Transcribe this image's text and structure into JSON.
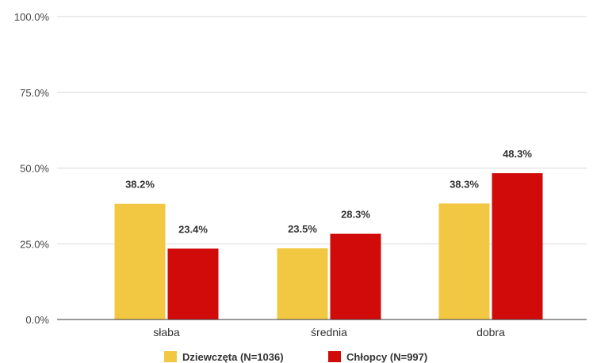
{
  "chart_data": {
    "type": "bar",
    "categories": [
      "słaba",
      "średnia",
      "dobra"
    ],
    "series": [
      {
        "name": "Dziewczęta (N=1036)",
        "color": "#F2C843",
        "values": [
          38.2,
          23.5,
          38.3
        ],
        "labels": [
          "38.2%",
          "23.5%",
          "38.3%"
        ]
      },
      {
        "name": "Chłopcy (N=997)",
        "color": "#D10A0A",
        "values": [
          23.4,
          28.3,
          48.3
        ],
        "labels": [
          "23.4%",
          "28.3%",
          "48.3%"
        ]
      }
    ],
    "ylim": [
      0,
      100
    ],
    "yticks": [
      {
        "value": 0,
        "label": "0.0%"
      },
      {
        "value": 25,
        "label": "25.0%"
      },
      {
        "value": 50,
        "label": "50.0%"
      },
      {
        "value": 75,
        "label": "75.0%"
      },
      {
        "value": 100,
        "label": "100.0%"
      }
    ],
    "grid": true,
    "legend": "bottom",
    "gridline_color": "#d9d9d9",
    "axis_color": "#333333"
  }
}
